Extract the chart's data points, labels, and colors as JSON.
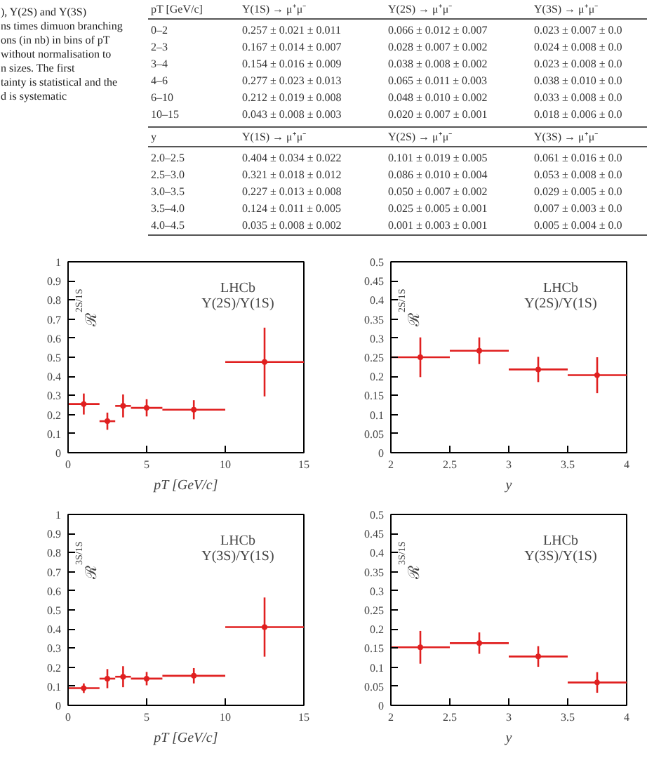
{
  "chart_data": [
    {
      "type": "other",
      "annotations": [
        "), Υ(2S) and Υ(3S)",
        "ns times dimuon branching",
        "ons (in nb) in bins of pT",
        "without normalisation to",
        "n sizes. The first",
        "tainty is statistical and the",
        "d is systematic"
      ],
      "cell_labels": [
        [
          "pT [GeV/c]",
          "Υ(1S) → μ⁺μ⁻",
          "Υ(2S) → μ⁺μ⁻",
          "Υ(3S) → μ⁺μ⁻"
        ],
        [
          "0–2",
          "0.257 ± 0.021 ± 0.011",
          "0.066 ± 0.012 ± 0.007",
          "0.023 ± 0.007 ± 0.0"
        ],
        [
          "2–3",
          "0.167 ± 0.014 ± 0.007",
          "0.028 ± 0.007 ± 0.002",
          "0.024 ± 0.008 ± 0.0"
        ],
        [
          "3–4",
          "0.154 ± 0.016 ± 0.009",
          "0.038 ± 0.008 ± 0.002",
          "0.023 ± 0.008 ± 0.0"
        ],
        [
          "4–6",
          "0.277 ± 0.023 ± 0.013",
          "0.065 ± 0.011 ± 0.003",
          "0.038 ± 0.010 ± 0.0"
        ],
        [
          "6–10",
          "0.212 ± 0.019 ± 0.008",
          "0.048 ± 0.010 ± 0.002",
          "0.033 ± 0.008 ± 0.0"
        ],
        [
          "10–15",
          "0.043 ± 0.008 ± 0.003",
          "0.020 ± 0.007 ± 0.001",
          "0.018 ± 0.006 ± 0.0"
        ],
        [
          "y",
          "Υ(1S) → μ⁺μ⁻",
          "Υ(2S) → μ⁺μ⁻",
          "Υ(3S) → μ⁺μ⁻"
        ],
        [
          "2.0–2.5",
          "0.404 ± 0.034 ± 0.022",
          "0.101 ± 0.019 ± 0.005",
          "0.061 ± 0.016 ± 0.0"
        ],
        [
          "2.5–3.0",
          "0.321 ± 0.018 ± 0.012",
          "0.086 ± 0.010 ± 0.004",
          "0.053 ± 0.008 ± 0.0"
        ],
        [
          "3.0–3.5",
          "0.227 ± 0.013 ± 0.008",
          "0.050 ± 0.007 ± 0.002",
          "0.029 ± 0.005 ± 0.0"
        ],
        [
          "3.5–4.0",
          "0.124 ± 0.011 ± 0.005",
          "0.025 ± 0.005 ± 0.001",
          "0.007 ± 0.003 ± 0.0"
        ],
        [
          "4.0–4.5",
          "0.035 ± 0.008 ± 0.002",
          "0.001 ± 0.003 ± 0.001",
          "0.005 ± 0.004 ± 0.0"
        ]
      ]
    },
    {
      "type": "scatter",
      "xlabel": "pT [GeV/c]",
      "ylabel": "ℛ$^{2S/1S}$",
      "annotations": [
        "LHCb",
        "Υ(2S)/Υ(1S)"
      ],
      "marker": "circle",
      "color": "#e02020",
      "x": [
        1,
        2.5,
        3.5,
        5,
        8,
        12.5
      ],
      "values": [
        0.255,
        0.165,
        0.245,
        0.235,
        0.225,
        0.475
      ],
      "xerrors": [
        1,
        0.5,
        0.5,
        1,
        2,
        2.5
      ],
      "errors": [
        0.055,
        0.045,
        0.06,
        0.045,
        0.05,
        0.18
      ],
      "xlim": [
        0,
        15
      ],
      "xticks": [
        0,
        5,
        10,
        15
      ],
      "ylim": [
        0,
        1
      ],
      "yticks": [
        0,
        0.1,
        0.2,
        0.3,
        0.4,
        0.5,
        0.6,
        0.7,
        0.8,
        0.9,
        1
      ]
    },
    {
      "type": "scatter",
      "xlabel": "y",
      "ylabel": "ℛ$^{2S/1S}$",
      "annotations": [
        "LHCb",
        "Υ(2S)/Υ(1S)"
      ],
      "marker": "circle",
      "color": "#e02020",
      "x": [
        2.25,
        2.75,
        3.25,
        3.75
      ],
      "values": [
        0.25,
        0.267,
        0.218,
        0.203
      ],
      "xerrors": [
        0.25,
        0.25,
        0.25,
        0.25
      ],
      "errors": [
        0.052,
        0.035,
        0.033,
        0.047
      ],
      "xlim": [
        2,
        4
      ],
      "xticks": [
        2,
        2.5,
        3,
        3.5,
        4
      ],
      "ylim": [
        0,
        0.5
      ],
      "yticks": [
        0,
        0.05,
        0.1,
        0.15,
        0.2,
        0.25,
        0.3,
        0.35,
        0.4,
        0.45,
        0.5
      ]
    },
    {
      "type": "scatter",
      "xlabel": "pT [GeV/c]",
      "ylabel": "ℛ$^{3S/1S}$",
      "annotations": [
        "LHCb",
        "Υ(3S)/Υ(1S)"
      ],
      "marker": "circle",
      "color": "#e02020",
      "x": [
        1,
        2.5,
        3.5,
        5,
        8,
        12.5
      ],
      "values": [
        0.09,
        0.14,
        0.15,
        0.14,
        0.155,
        0.41
      ],
      "xerrors": [
        1,
        0.5,
        0.5,
        1,
        2,
        2.5
      ],
      "errors": [
        0.025,
        0.05,
        0.055,
        0.035,
        0.04,
        0.155
      ],
      "xlim": [
        0,
        15
      ],
      "xticks": [
        0,
        5,
        10,
        15
      ],
      "ylim": [
        0,
        1
      ],
      "yticks": [
        0,
        0.1,
        0.2,
        0.3,
        0.4,
        0.5,
        0.6,
        0.7,
        0.8,
        0.9,
        1
      ]
    },
    {
      "type": "scatter",
      "xlabel": "y",
      "ylabel": "ℛ$^{3S/1S}$",
      "annotations": [
        "LHCb",
        "Υ(3S)/Υ(1S)"
      ],
      "marker": "circle",
      "color": "#e02020",
      "x": [
        2.25,
        2.75,
        3.25,
        3.75
      ],
      "values": [
        0.152,
        0.163,
        0.128,
        0.06
      ],
      "xerrors": [
        0.25,
        0.25,
        0.25,
        0.25
      ],
      "errors": [
        0.043,
        0.028,
        0.027,
        0.027
      ],
      "xlim": [
        2,
        4
      ],
      "xticks": [
        2,
        2.5,
        3,
        3.5,
        4
      ],
      "ylim": [
        0,
        0.5
      ],
      "yticks": [
        0,
        0.05,
        0.1,
        0.15,
        0.2,
        0.25,
        0.3,
        0.35,
        0.4,
        0.45,
        0.5
      ]
    }
  ]
}
